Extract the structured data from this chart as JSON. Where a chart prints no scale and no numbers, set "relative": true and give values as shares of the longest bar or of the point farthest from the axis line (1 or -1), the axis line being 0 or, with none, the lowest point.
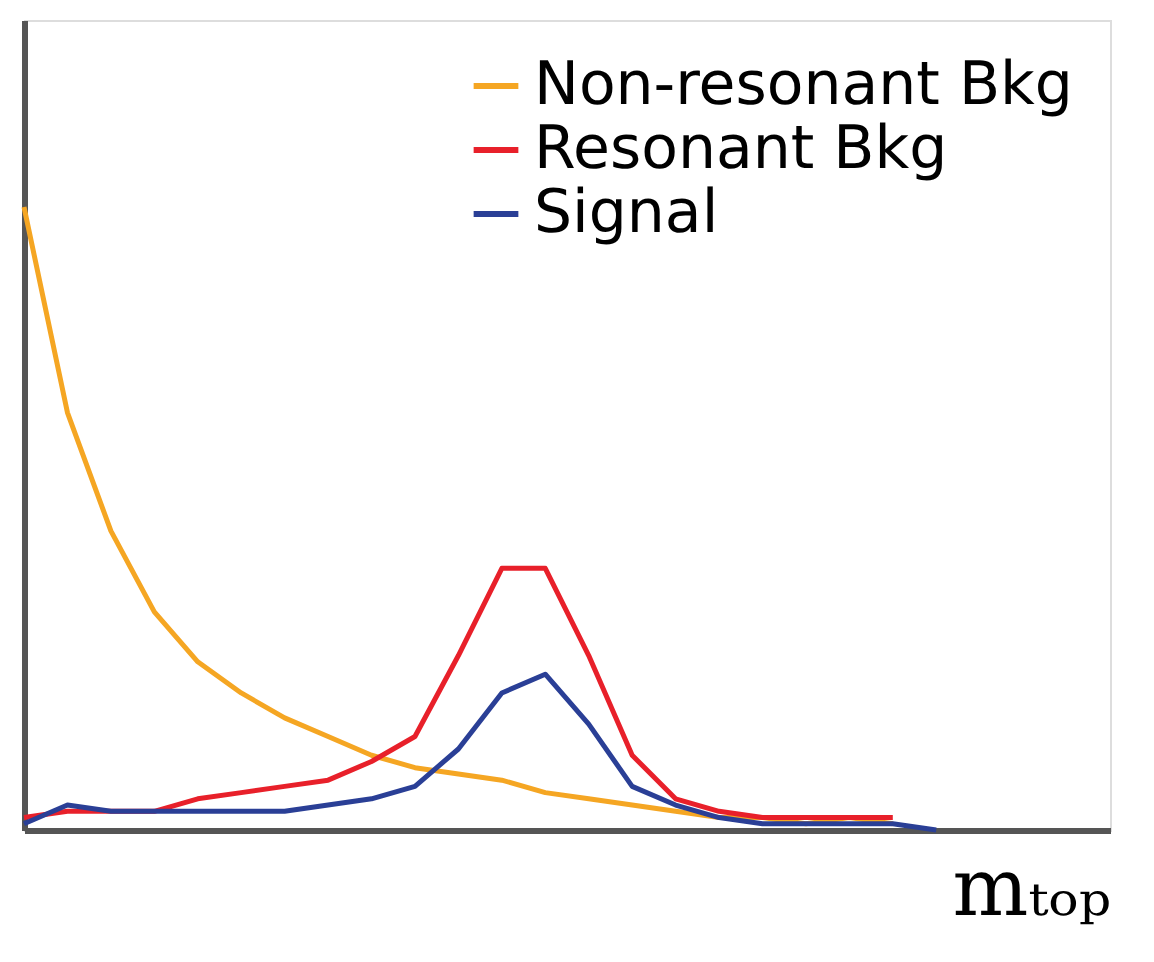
{
  "chart_data": {
    "type": "line",
    "relative": true,
    "xlabel": "mₜₒₚ",
    "legend": "top right",
    "grid": false,
    "tick_labels": false,
    "categories": [
      null,
      null,
      null,
      null,
      null,
      null,
      null,
      null,
      null,
      null,
      null,
      null,
      null,
      null,
      null,
      null,
      null,
      null,
      null,
      null,
      null,
      null
    ],
    "series": [
      {
        "name": "Non-resonant Bkg",
        "color": "#f5a623",
        "values": [
          1,
          0.67,
          0.48,
          0.35,
          0.27,
          0.22,
          0.18,
          0.15,
          0.12,
          0.1,
          0.09,
          0.08,
          0.06,
          0.05,
          0.04,
          0.03,
          0.02,
          0.02,
          0.01,
          0.02,
          0.01,
          null
        ]
      },
      {
        "name": "Resonant Bkg",
        "color": "#e8202a",
        "values": [
          0.02,
          0.03,
          0.03,
          0.03,
          0.05,
          0.06,
          0.07,
          0.08,
          0.11,
          0.15,
          0.28,
          0.42,
          0.42,
          0.28,
          0.12,
          0.05,
          0.03,
          0.02,
          0.02,
          0.02,
          0.02,
          null
        ]
      },
      {
        "name": "Signal",
        "color": "#2a3f96",
        "values": [
          0.01,
          0.04,
          0.03,
          0.03,
          0.03,
          0.03,
          0.03,
          0.04,
          0.05,
          0.07,
          0.13,
          0.22,
          0.25,
          0.17,
          0.07,
          0.04,
          0.02,
          0.01,
          0.01,
          0.01,
          0.01,
          0
        ]
      }
    ]
  }
}
